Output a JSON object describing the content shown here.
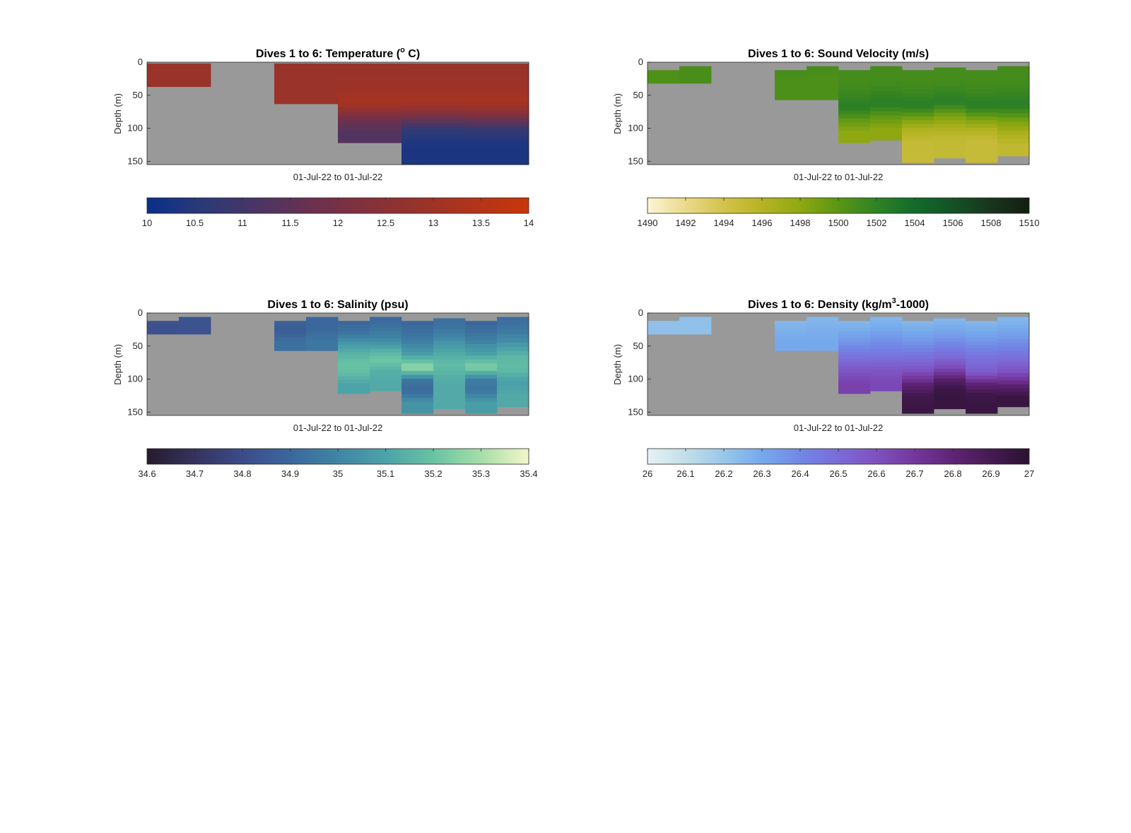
{
  "figure": {
    "background_nan_color": "#999999"
  },
  "chart_data": [
    {
      "type": "heatmap",
      "title_prefix": "Dives 1 to 6: Temperature (",
      "title_sup": "o",
      "title_suffix": " C)",
      "xlabel": "01-Jul-22 to 01-Jul-22",
      "ylabel": "Depth (m)",
      "ylim": [
        0,
        155
      ],
      "yticks": [
        "0",
        "50",
        "100",
        "150"
      ],
      "colorbar": {
        "range": [
          10,
          14
        ],
        "ticks": [
          "10",
          "10.5",
          "11",
          "11.5",
          "12",
          "12.5",
          "13",
          "13.5",
          "14"
        ],
        "colors": [
          "#0a2f8a",
          "#2a3a78",
          "#4a3565",
          "#6a3150",
          "#83313c",
          "#98332a",
          "#b2341a",
          "#c9360a"
        ]
      },
      "columns": 12,
      "profiles": [
        {
          "column": 0,
          "top": 2,
          "bottom": 37,
          "values": [
            12.9,
            12.9
          ]
        },
        {
          "column": 1,
          "top": 2,
          "bottom": 37,
          "values": [
            12.9,
            12.9
          ]
        },
        {
          "column": 4,
          "top": 2,
          "bottom": 63,
          "values": [
            12.8,
            12.9,
            12.9
          ]
        },
        {
          "column": 5,
          "top": 2,
          "bottom": 63,
          "values": [
            12.8,
            12.9,
            12.9
          ]
        },
        {
          "column": 6,
          "top": 2,
          "bottom": 122,
          "values": [
            12.8,
            12.9,
            13.0,
            13.2,
            12.0,
            11.3
          ]
        },
        {
          "column": 7,
          "top": 2,
          "bottom": 122,
          "values": [
            12.8,
            12.9,
            13.0,
            13.2,
            12.0,
            11.3
          ]
        },
        {
          "column": 8,
          "top": 2,
          "bottom": 155,
          "values": [
            12.8,
            12.9,
            13.0,
            13.2,
            12.2,
            10.8,
            10.4,
            10.3
          ]
        },
        {
          "column": 9,
          "top": 2,
          "bottom": 155,
          "values": [
            12.8,
            12.9,
            13.0,
            13.2,
            12.2,
            10.8,
            10.4,
            10.3
          ]
        },
        {
          "column": 10,
          "top": 2,
          "bottom": 155,
          "values": [
            12.8,
            12.9,
            13.0,
            13.2,
            12.3,
            10.9,
            10.4,
            10.3
          ]
        },
        {
          "column": 11,
          "top": 2,
          "bottom": 155,
          "values": [
            12.8,
            12.9,
            13.0,
            13.2,
            12.3,
            10.9,
            10.4,
            10.3
          ]
        }
      ]
    },
    {
      "type": "heatmap",
      "title_prefix": "Dives 1 to 6: Sound Velocity (m/s)",
      "title_sup": "",
      "title_suffix": "",
      "xlabel": "01-Jul-22 to 01-Jul-22",
      "ylabel": "Depth (m)",
      "ylim": [
        0,
        155
      ],
      "yticks": [
        "0",
        "50",
        "100",
        "150"
      ],
      "colorbar": {
        "range": [
          1490,
          1510
        ],
        "ticks": [
          "1490",
          "1492",
          "1494",
          "1496",
          "1498",
          "1500",
          "1502",
          "1504",
          "1506",
          "1508",
          "1510"
        ],
        "colors": [
          "#fbf6d4",
          "#ead98a",
          "#d3c24c",
          "#b6b424",
          "#8fa812",
          "#5a9614",
          "#2f8224",
          "#136b2c",
          "#155226",
          "#18361d",
          "#141c12"
        ]
      },
      "columns": 12,
      "profiles": [
        {
          "column": 0,
          "top": 12,
          "bottom": 32,
          "values": [
            1500.5
          ]
        },
        {
          "column": 1,
          "top": 6,
          "bottom": 32,
          "values": [
            1500.8
          ]
        },
        {
          "column": 4,
          "top": 12,
          "bottom": 57,
          "values": [
            1501.0,
            1500.6,
            1500.6
          ]
        },
        {
          "column": 5,
          "top": 6,
          "bottom": 57,
          "values": [
            1501.0,
            1500.6,
            1500.6
          ]
        },
        {
          "column": 6,
          "top": 12,
          "bottom": 122,
          "values": [
            1501.0,
            1501.0,
            1501.5,
            1502.5,
            1500.0,
            1498.0
          ]
        },
        {
          "column": 7,
          "top": 6,
          "bottom": 118,
          "values": [
            1501.0,
            1501.0,
            1501.5,
            1502.5,
            1500.0,
            1498.0
          ]
        },
        {
          "column": 8,
          "top": 12,
          "bottom": 152,
          "values": [
            1501.0,
            1501.0,
            1501.5,
            1502.5,
            1499.5,
            1496.5,
            1495.2,
            1495.0
          ]
        },
        {
          "column": 9,
          "top": 8,
          "bottom": 145,
          "values": [
            1501.0,
            1501.0,
            1501.5,
            1502.5,
            1499.5,
            1497.0,
            1495.4,
            1495.2
          ]
        },
        {
          "column": 10,
          "top": 12,
          "bottom": 152,
          "values": [
            1501.0,
            1501.0,
            1501.5,
            1502.5,
            1499.5,
            1496.5,
            1495.0,
            1495.0
          ]
        },
        {
          "column": 11,
          "top": 6,
          "bottom": 142,
          "values": [
            1501.0,
            1501.0,
            1501.5,
            1502.5,
            1499.5,
            1497.0,
            1495.4
          ]
        }
      ]
    },
    {
      "type": "heatmap",
      "title_prefix": "Dives 1 to 6: Salinity (psu)",
      "title_sup": "",
      "title_suffix": "",
      "xlabel": "01-Jul-22 to 01-Jul-22",
      "ylabel": "Depth (m)",
      "ylim": [
        0,
        155
      ],
      "yticks": [
        "0",
        "50",
        "100",
        "150"
      ],
      "colorbar": {
        "range": [
          34.6,
          35.4
        ],
        "ticks": [
          "34.6",
          "34.7",
          "34.8",
          "34.9",
          "35",
          "35.1",
          "35.2",
          "35.3",
          "35.4"
        ],
        "colors": [
          "#251c2e",
          "#35325e",
          "#3c4b8a",
          "#3b679c",
          "#3f85a5",
          "#4ca3a8",
          "#68c3a4",
          "#a6dea8",
          "#f3f7c9"
        ]
      },
      "columns": 12,
      "profiles": [
        {
          "column": 0,
          "top": 12,
          "bottom": 32,
          "values": [
            34.82
          ]
        },
        {
          "column": 1,
          "top": 6,
          "bottom": 32,
          "values": [
            34.83
          ]
        },
        {
          "column": 4,
          "top": 12,
          "bottom": 57,
          "values": [
            34.88,
            34.86,
            34.93
          ]
        },
        {
          "column": 5,
          "top": 6,
          "bottom": 57,
          "values": [
            34.9,
            34.9,
            34.95
          ]
        },
        {
          "column": 6,
          "top": 12,
          "bottom": 122,
          "values": [
            34.9,
            34.93,
            35.05,
            35.14,
            35.2,
            35.18,
            35.1
          ]
        },
        {
          "column": 7,
          "top": 6,
          "bottom": 118,
          "values": [
            34.9,
            34.94,
            35.0,
            35.12,
            35.22,
            35.14,
            35.12
          ]
        },
        {
          "column": 8,
          "top": 12,
          "bottom": 152,
          "values": [
            34.9,
            34.93,
            35.0,
            35.1,
            35.3,
            34.96,
            34.9,
            35.05
          ]
        },
        {
          "column": 9,
          "top": 8,
          "bottom": 145,
          "values": [
            34.93,
            34.95,
            35.04,
            35.12,
            35.18,
            35.14,
            35.12,
            35.12
          ]
        },
        {
          "column": 10,
          "top": 12,
          "bottom": 152,
          "values": [
            34.9,
            34.93,
            35.02,
            35.12,
            35.26,
            34.97,
            34.95,
            35.08
          ]
        },
        {
          "column": 11,
          "top": 6,
          "bottom": 142,
          "values": [
            34.92,
            34.95,
            35.05,
            35.16,
            35.18,
            35.08,
            35.12
          ]
        }
      ]
    },
    {
      "type": "heatmap",
      "title_prefix": "Dives 1 to 6: Density (kg/m",
      "title_sup": "3",
      "title_suffix": "-1000)",
      "xlabel": "01-Jul-22 to 01-Jul-22",
      "ylabel": "Depth (m)",
      "ylim": [
        0,
        155
      ],
      "yticks": [
        "0",
        "50",
        "100",
        "150"
      ],
      "colorbar": {
        "range": [
          26,
          27
        ],
        "ticks": [
          "26",
          "26.1",
          "26.2",
          "26.3",
          "26.4",
          "26.5",
          "26.6",
          "26.7",
          "26.8",
          "26.9",
          "27"
        ],
        "colors": [
          "#e6f2f3",
          "#c3dfe9",
          "#98c7ea",
          "#76a9ec",
          "#7187e6",
          "#7b6bd8",
          "#7e51bf",
          "#74379d",
          "#5e2375",
          "#451a52",
          "#2a1230"
        ]
      },
      "columns": 12,
      "profiles": [
        {
          "column": 0,
          "top": 12,
          "bottom": 32,
          "values": [
            26.22
          ]
        },
        {
          "column": 1,
          "top": 6,
          "bottom": 32,
          "values": [
            26.22
          ]
        },
        {
          "column": 4,
          "top": 12,
          "bottom": 57,
          "values": [
            26.25,
            26.28,
            26.3
          ]
        },
        {
          "column": 5,
          "top": 6,
          "bottom": 57,
          "values": [
            26.25,
            26.28,
            26.3
          ]
        },
        {
          "column": 6,
          "top": 12,
          "bottom": 122,
          "values": [
            26.25,
            26.3,
            26.36,
            26.44,
            26.52,
            26.6,
            26.66
          ]
        },
        {
          "column": 7,
          "top": 6,
          "bottom": 118,
          "values": [
            26.25,
            26.3,
            26.36,
            26.42,
            26.5,
            26.58,
            26.63
          ]
        },
        {
          "column": 8,
          "top": 12,
          "bottom": 152,
          "values": [
            26.25,
            26.3,
            26.36,
            26.44,
            26.52,
            26.62,
            26.78,
            26.9,
            26.94
          ]
        },
        {
          "column": 9,
          "top": 8,
          "bottom": 145,
          "values": [
            26.25,
            26.3,
            26.36,
            26.44,
            26.52,
            26.64,
            26.82,
            26.94,
            26.95
          ]
        },
        {
          "column": 10,
          "top": 12,
          "bottom": 152,
          "values": [
            26.25,
            26.3,
            26.36,
            26.44,
            26.5,
            26.56,
            26.78,
            26.92,
            26.95
          ]
        },
        {
          "column": 11,
          "top": 6,
          "bottom": 142,
          "values": [
            26.25,
            26.3,
            26.36,
            26.44,
            26.52,
            26.62,
            26.8,
            26.95
          ]
        }
      ]
    }
  ]
}
